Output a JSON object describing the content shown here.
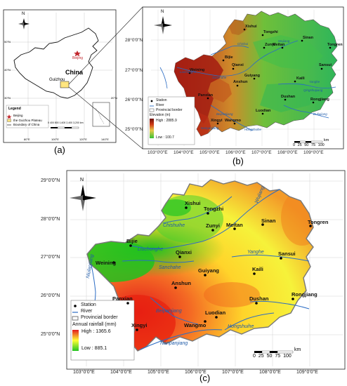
{
  "panels": {
    "a": {
      "label": "(a)",
      "country_label": "China",
      "city_label": "Beijing",
      "province_label": "Guizhou",
      "legend": {
        "title": "Legend",
        "items": [
          "Beijing",
          "the Guizhou Plateau",
          "Boundary of China"
        ]
      },
      "scale": [
        "0",
        "400",
        "800",
        "1,600",
        "2,400",
        "3,200"
      ],
      "scale_unit": "km",
      "lat_ticks": [
        "50°N",
        "40°N",
        "30°N",
        "20°N"
      ],
      "lon_ticks": [
        "80°E",
        "100°E",
        "120°E",
        "140°E"
      ],
      "north": "N"
    },
    "b": {
      "label": "(b)",
      "north": "N",
      "lat_ticks": [
        "28°0'0\"N",
        "27°0'0\"N",
        "26°0'0\"N",
        "25°0'0\"N"
      ],
      "lon_ticks": [
        "103°0'0\"E",
        "104°0'0\"E",
        "105°0'0\"E",
        "106°0'0\"E",
        "107°0'0\"E",
        "108°0'0\"E",
        "109°0'0\"E"
      ],
      "legend": {
        "station": "Station",
        "river": "River",
        "border": "Provincial border",
        "elev_title": "Elevation (m)",
        "high": "High : 2885.9",
        "low": "Low : 100.7"
      },
      "scale": [
        "0",
        "25",
        "50",
        "75",
        "100"
      ],
      "scale_unit": "km",
      "rivers": [
        "Chishui",
        "Wujiang",
        "Sanchahe",
        "Nanpanjiang",
        "Beipanjiang",
        "Liuchonghe",
        "Yanghe",
        "Qingshuijiang",
        "Duliujiang",
        "Hongshuihe"
      ]
    },
    "c": {
      "label": "(c)",
      "north": "N",
      "lat_ticks": [
        "29°0'0\"N",
        "28°0'0\"N",
        "27°0'0\"N",
        "26°0'0\"N",
        "25°0'0\"N"
      ],
      "lon_ticks": [
        "103°0'0\"E",
        "104°0'0\"E",
        "105°0'0\"E",
        "106°0'0\"E",
        "107°0'0\"E",
        "108°0'0\"E",
        "109°0'0\"E"
      ],
      "legend": {
        "station": "Station",
        "river": "River",
        "border": "Provincial border",
        "rain_title": "Annual rainfall (mm)",
        "high": "High : 1365.6",
        "low": "Low : 885.1"
      },
      "scale": [
        "0",
        "25",
        "50",
        "75",
        "100"
      ],
      "scale_unit": "km",
      "rivers": {
        "chishuihe": "Chishuihe",
        "wujiang": "Wujiang",
        "liuchonghe": "Liuchonghe",
        "sanchahe": "Sanchahe",
        "yanghe": "Yanghe",
        "nanpanjiang": "Nanpanjiang",
        "beipanjiang": "Beipanjiang",
        "hongshuihe": "Hongshuihe",
        "niulanjiang": "Niulanjiang"
      }
    }
  },
  "stations": [
    "Xishui",
    "Tongzhi",
    "Zunyi",
    "Meitan",
    "Sinan",
    "Tongren",
    "Bijie",
    "Qianxi",
    "Weining",
    "Guiyang",
    "Kaili",
    "Sansui",
    "Anshun",
    "Dushan",
    "Rongjiang",
    "Panxian",
    "Luodian",
    "Wangmo",
    "Xingyi"
  ],
  "colors": {
    "rain_high": "#e31a1c",
    "rain_mid": "#ffff33",
    "rain_low": "#33cc33",
    "river": "#2b6cc4",
    "elev_high": "#8b1a0e",
    "elev_low": "#3ec63e"
  }
}
